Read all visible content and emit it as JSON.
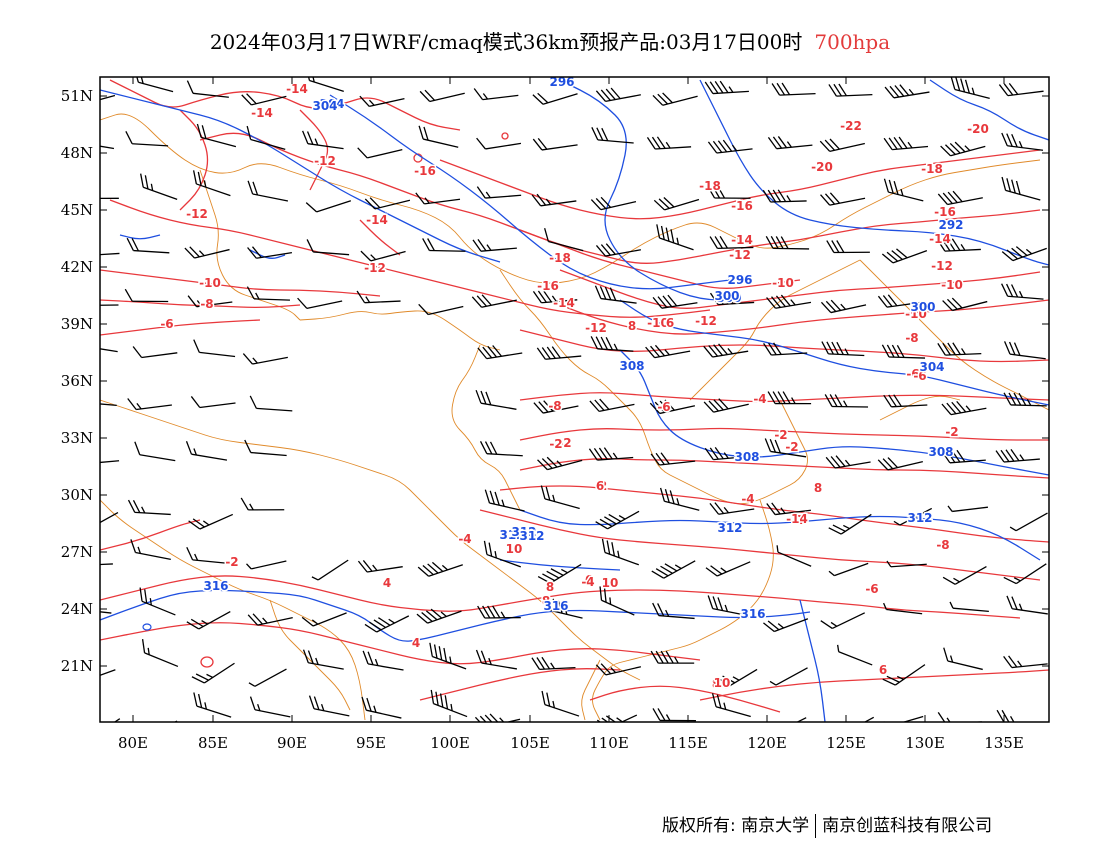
{
  "title": {
    "main": "2024年03月17日WRF/cmaq模式36km预报产品:03月17日00时",
    "level": "700hpa"
  },
  "axes": {
    "x_ticks": [
      "80E",
      "85E",
      "90E",
      "95E",
      "100E",
      "105E",
      "110E",
      "115E",
      "120E",
      "125E",
      "130E",
      "135E"
    ],
    "y_ticks": [
      "51N",
      "48N",
      "45N",
      "42N",
      "39N",
      "36N",
      "33N",
      "30N",
      "27N",
      "24N",
      "21N"
    ]
  },
  "colors": {
    "temperature": "#e8383c",
    "height": "#1f4fe0",
    "border": "#e08a2a",
    "wind": "#000000"
  },
  "temperature_labels": [
    "-14",
    "-14",
    "-14",
    "-12",
    "-12",
    "-16",
    "-12",
    "-14",
    "-10",
    "-8",
    "-6",
    "-22",
    "-20",
    "-18",
    "-18",
    "-16",
    "-14",
    "-12",
    "-10",
    "-16",
    "-14",
    "-12",
    "-10",
    "-20",
    "-18",
    "-16",
    "-14",
    "-12",
    "-10",
    "-12",
    "-10",
    "-8",
    "-6",
    "-8",
    "-6",
    "-4",
    "-2",
    "-2",
    "-2",
    "-2",
    "2",
    "-4",
    "2",
    "-8",
    "-6",
    "-4",
    "-2",
    "4",
    "6",
    "8",
    "10",
    "8",
    "4",
    "6",
    "8",
    "10",
    "-14",
    "10",
    "6",
    "8",
    "-6",
    "6",
    "-4",
    "-2",
    "8"
  ],
  "height_labels": [
    "304",
    "296",
    "304",
    "312",
    "296",
    "300",
    "300",
    "308",
    "308",
    "312",
    "312",
    "316",
    "316",
    "316",
    "308",
    "312",
    "304",
    "300",
    "292",
    "312"
  ],
  "footer": {
    "left": "版权所有: 南京大学",
    "right": "南京创蓝科技有限公司"
  }
}
